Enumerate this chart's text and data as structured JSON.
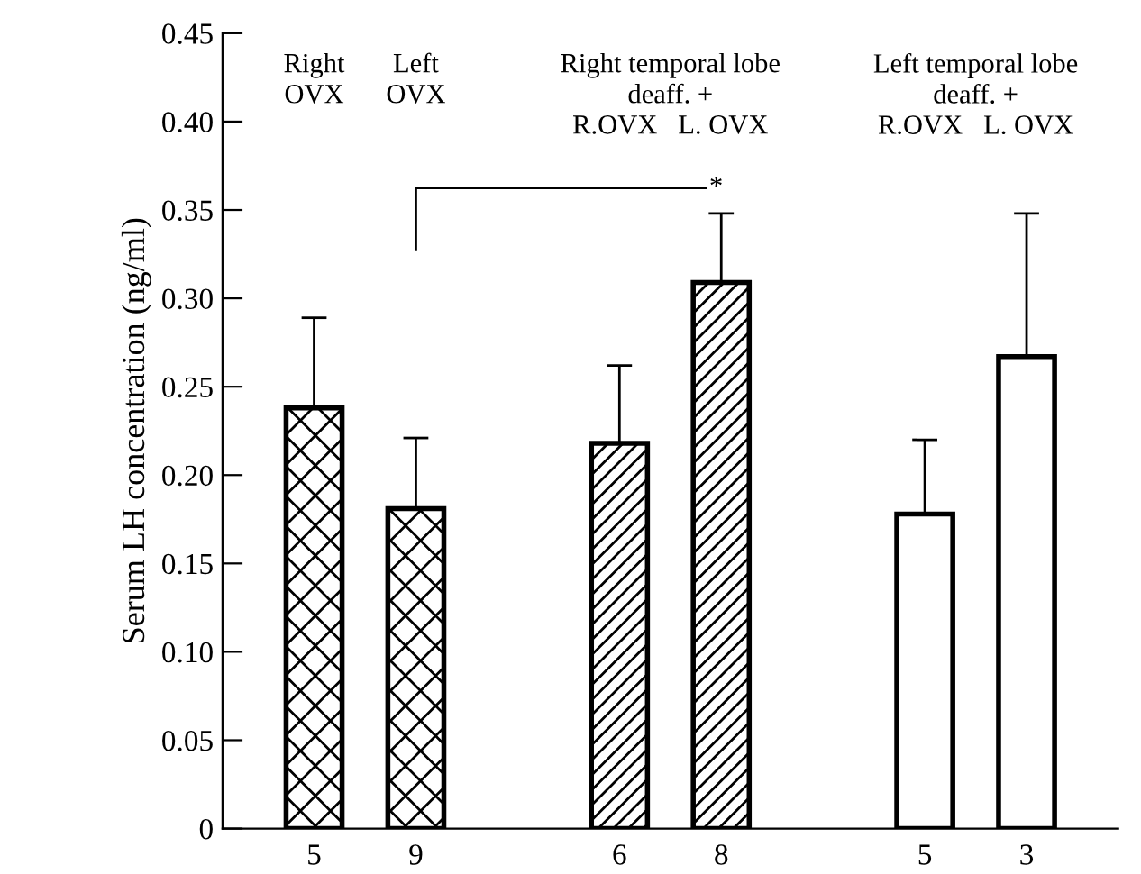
{
  "chart_data": {
    "type": "bar",
    "ylabel": "Serum LH concentration (ng/ml)",
    "categories": [
      "5",
      "9",
      "6",
      "8",
      "5",
      "3"
    ],
    "series": [
      {
        "color": "#000000",
        "values": [
          0.238,
          0.181,
          null,
          null,
          null,
          null
        ],
        "errors": [
          [
            0.238,
            0.289
          ],
          [
            0.181,
            0.221
          ],
          null,
          null,
          null,
          null
        ]
      },
      {
        "color": "#000000",
        "values": [
          null,
          null,
          0.218,
          0.309,
          null,
          null
        ],
        "errors": [
          null,
          null,
          [
            0.218,
            0.262
          ],
          [
            0.309,
            0.348
          ],
          null,
          null
        ]
      },
      {
        "color": "#000000",
        "values": [
          null,
          null,
          null,
          null,
          0.178,
          0.267
        ],
        "errors": [
          null,
          null,
          null,
          null,
          [
            0.178,
            0.22
          ],
          [
            0.267,
            0.348
          ]
        ]
      }
    ],
    "annotations": [
      "Right\nOVX",
      "Left\nOVX",
      "Right temporal lobe\ndeaff. +\nR.OVX   L. OVX",
      "Left temporal lobe\ndeaff. +\nR.OVX   L. OVX",
      "*"
    ],
    "ylim": [
      0,
      0.45
    ],
    "yticks": [
      0,
      0.05,
      {
        "value": 0.1,
        "label": "0.10"
      },
      0.15,
      {
        "value": 0.2,
        "label": "0.20"
      },
      0.25,
      {
        "value": 0.3,
        "label": "0.30"
      },
      0.35,
      {
        "value": 0.4,
        "label": "0.40"
      },
      0.45
    ],
    "grid": false,
    "legend": false
  }
}
